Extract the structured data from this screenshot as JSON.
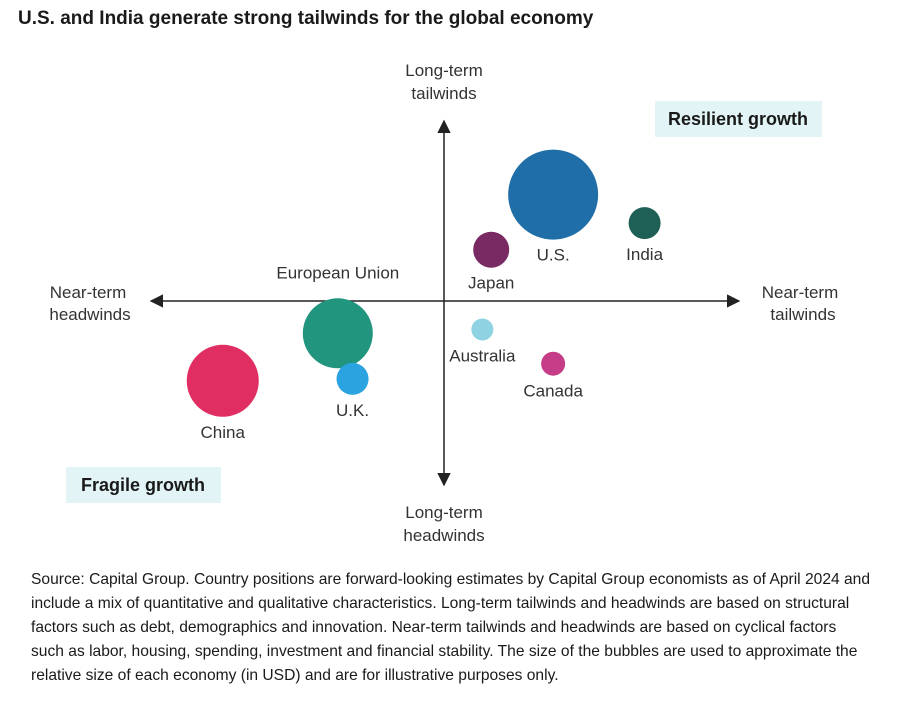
{
  "title": "U.S. and India generate strong tailwinds for the global economy",
  "chart_data": {
    "type": "scatter",
    "axes": {
      "top": [
        "Long-term",
        "tailwinds"
      ],
      "bottom": [
        "Long-term",
        "headwinds"
      ],
      "left": [
        "Near-term",
        "headwinds"
      ],
      "right": [
        "Near-term",
        "tailwinds"
      ]
    },
    "quadrant_labels": [
      "Resilient growth",
      "Fragile growth"
    ],
    "xlim": [
      -1,
      1
    ],
    "ylim": [
      -1,
      1
    ],
    "points": [
      {
        "name": "U.S.",
        "x": 0.37,
        "y": 0.56,
        "size": 45,
        "color": "#1f6ea8",
        "label_pos": "below"
      },
      {
        "name": "India",
        "x": 0.68,
        "y": 0.41,
        "size": 16,
        "color": "#1e5f56",
        "label_pos": "below"
      },
      {
        "name": "Japan",
        "x": 0.16,
        "y": 0.27,
        "size": 18,
        "color": "#7a2a62",
        "label_pos": "below"
      },
      {
        "name": "European Union",
        "x": -0.36,
        "y": -0.17,
        "size": 35,
        "color": "#21957e",
        "label_pos": "above"
      },
      {
        "name": "Australia",
        "x": 0.13,
        "y": -0.15,
        "size": 11,
        "color": "#8fd3e2",
        "label_pos": "below"
      },
      {
        "name": "Canada",
        "x": 0.37,
        "y": -0.33,
        "size": 12,
        "color": "#c43d86",
        "label_pos": "below"
      },
      {
        "name": "U.K.",
        "x": -0.31,
        "y": -0.41,
        "size": 16,
        "color": "#2ba3e0",
        "label_pos": "below"
      },
      {
        "name": "China",
        "x": -0.75,
        "y": -0.42,
        "size": 36,
        "color": "#e02d62",
        "label_pos": "below"
      }
    ]
  },
  "source": "Source: Capital Group. Country positions are forward-looking estimates by Capital Group economists as of April 2024 and include a mix of quantitative and qualitative characteristics. Long-term tailwinds and headwinds are based on structural factors such as debt, demographics and innovation. Near-term tailwinds and headwinds are based on cyclical factors such as labor, housing, spending, investment and financial stability. The size of the bubbles are used to approximate the relative size of each economy (in USD) and are for illustrative purposes only."
}
